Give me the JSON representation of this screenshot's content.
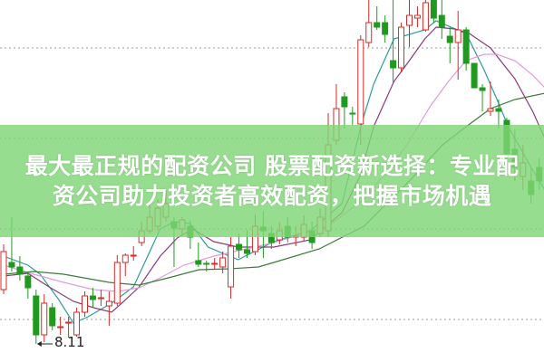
{
  "title": {
    "line1": "最大最正规的配资公司 股票配资新选择：专业配",
    "line2": "资公司助力投资者高效配资，把握市场机遇"
  },
  "chart_data": {
    "type": "candlestick",
    "title": "",
    "xlabel": "",
    "ylabel": "",
    "grid": true,
    "gridlines": [
      11.38,
      10.38,
      9.38,
      8.38
    ],
    "annotation": {
      "text": "8.11",
      "candle_index": 4,
      "price": 8.11
    },
    "up_color": "#d62a2a",
    "down_color": "#1f9a1f",
    "candles_ohlc": [
      [
        8.71,
        9.21,
        8.66,
        9.13
      ],
      [
        9.01,
        9.51,
        8.91,
        8.96
      ],
      [
        8.96,
        9.08,
        8.81,
        8.88
      ],
      [
        8.86,
        8.91,
        8.61,
        8.73
      ],
      [
        8.64,
        8.71,
        8.11,
        8.21
      ],
      [
        8.21,
        8.66,
        8.13,
        8.56
      ],
      [
        8.51,
        8.56,
        8.26,
        8.31
      ],
      [
        8.29,
        8.41,
        8.21,
        8.3
      ],
      [
        8.34,
        8.41,
        8.18,
        8.35
      ],
      [
        8.21,
        8.51,
        8.19,
        8.46
      ],
      [
        8.46,
        8.69,
        8.41,
        8.64
      ],
      [
        8.64,
        8.73,
        8.51,
        8.6
      ],
      [
        8.61,
        8.71,
        8.53,
        8.62
      ],
      [
        8.53,
        8.69,
        8.31,
        8.58
      ],
      [
        8.56,
        9.09,
        8.53,
        9.01
      ],
      [
        9.01,
        9.11,
        8.86,
        9.09
      ],
      [
        9.08,
        9.19,
        9.03,
        9.09
      ],
      [
        9.23,
        9.46,
        9.19,
        9.36
      ],
      [
        9.36,
        9.66,
        9.33,
        9.51
      ],
      [
        9.41,
        9.71,
        9.36,
        9.61
      ],
      [
        9.51,
        9.81,
        9.46,
        9.66
      ],
      [
        9.46,
        9.51,
        8.96,
        9.39
      ],
      [
        9.38,
        9.51,
        9.31,
        9.48
      ],
      [
        9.41,
        9.48,
        9.16,
        9.29
      ],
      [
        9.03,
        9.23,
        8.96,
        8.99
      ],
      [
        9.0,
        9.03,
        8.91,
        8.99
      ],
      [
        8.99,
        9.06,
        8.93,
        9.0
      ],
      [
        8.96,
        9.13,
        8.89,
        9.06
      ],
      [
        8.74,
        9.29,
        8.61,
        9.19
      ],
      [
        9.21,
        9.33,
        9.06,
        9.15
      ],
      [
        9.15,
        9.37,
        9.06,
        9.11
      ],
      [
        9.13,
        9.54,
        9.09,
        9.41
      ],
      [
        9.4,
        9.58,
        9.06,
        9.36
      ],
      [
        9.33,
        9.41,
        9.16,
        9.23
      ],
      [
        9.26,
        9.46,
        9.21,
        9.36
      ],
      [
        9.41,
        9.51,
        9.23,
        9.29
      ],
      [
        9.29,
        9.41,
        9.19,
        9.3
      ],
      [
        9.29,
        9.53,
        9.25,
        9.43
      ],
      [
        9.36,
        9.46,
        9.16,
        9.23
      ],
      [
        9.33,
        9.61,
        9.29,
        9.51
      ],
      [
        9.36,
        10.66,
        9.29,
        10.31
      ],
      [
        10.36,
        10.98,
        10.31,
        10.71
      ],
      [
        10.84,
        10.89,
        10.49,
        10.73
      ],
      [
        10.66,
        10.73,
        10.53,
        10.65
      ],
      [
        10.54,
        11.52,
        10.31,
        11.47
      ],
      [
        11.44,
        11.91,
        11.39,
        11.66
      ],
      [
        11.66,
        11.84,
        11.58,
        11.61
      ],
      [
        11.66,
        11.74,
        11.44,
        11.53
      ],
      [
        11.24,
        11.91,
        10.99,
        11.16
      ],
      [
        11.16,
        11.66,
        11.11,
        11.61
      ],
      [
        11.63,
        11.91,
        11.39,
        11.74
      ],
      [
        11.71,
        11.84,
        11.61,
        11.74
      ],
      [
        11.58,
        11.91,
        11.56,
        11.88
      ],
      [
        11.91,
        11.91,
        11.66,
        11.71
      ],
      [
        11.74,
        11.91,
        11.48,
        11.61
      ],
      [
        11.51,
        11.61,
        11.21,
        11.44
      ],
      [
        11.44,
        11.79,
        11.03,
        11.58
      ],
      [
        11.58,
        11.61,
        11.13,
        11.21
      ],
      [
        11.21,
        11.21,
        10.94,
        10.94
      ],
      [
        10.94,
        10.98,
        10.68,
        10.91
      ],
      [
        10.68,
        11.01,
        10.63,
        10.71
      ],
      [
        10.71,
        10.81,
        10.49,
        10.68
      ],
      [
        10.58,
        10.61,
        10.16,
        10.21
      ],
      [
        10.26,
        10.48,
        9.91,
        10.06
      ],
      [
        9.96,
        10.31,
        9.81,
        10.11
      ],
      [
        9.91,
        10.06,
        9.66,
        9.76
      ],
      [
        10.06,
        10.16,
        9.81,
        9.91
      ]
    ],
    "moving_averages": [
      {
        "color": "#2e9c9c",
        "points": [
          [
            0,
            9.08
          ],
          [
            3,
            8.98
          ],
          [
            4.5,
            8.88
          ],
          [
            6.7,
            8.61
          ],
          [
            8.6,
            8.34
          ],
          [
            10.4,
            8.41
          ],
          [
            13.3,
            8.56
          ],
          [
            16,
            8.74
          ],
          [
            19.3,
            9.38
          ],
          [
            21.1,
            9.46
          ],
          [
            23,
            9.44
          ],
          [
            25.2,
            9.18
          ],
          [
            28.9,
            9.04
          ],
          [
            33.3,
            9.24
          ],
          [
            37.8,
            9.36
          ],
          [
            41.7,
            9.66
          ],
          [
            44.1,
            10.54
          ],
          [
            45.6,
            10.98
          ],
          [
            48.1,
            11.48
          ],
          [
            51.9,
            11.58
          ],
          [
            53.3,
            11.68
          ],
          [
            57,
            11.54
          ],
          [
            59.2,
            11.14
          ],
          [
            60.8,
            10.81
          ],
          [
            62.2,
            10.51
          ],
          [
            65,
            10.06
          ],
          [
            66.7,
            9.81
          ]
        ]
      },
      {
        "color": "#8a3a7c",
        "points": [
          [
            0,
            8.86
          ],
          [
            3,
            8.89
          ],
          [
            5.6,
            8.74
          ],
          [
            8.6,
            8.58
          ],
          [
            11.1,
            8.51
          ],
          [
            13.3,
            8.46
          ],
          [
            14.8,
            8.58
          ],
          [
            16.7,
            8.74
          ],
          [
            19.3,
            9.08
          ],
          [
            21.4,
            9.28
          ],
          [
            23.3,
            9.38
          ],
          [
            25.9,
            9.24
          ],
          [
            28.9,
            9.18
          ],
          [
            33.3,
            9.18
          ],
          [
            37.8,
            9.26
          ],
          [
            41.7,
            9.56
          ],
          [
            43.9,
            9.96
          ],
          [
            45.6,
            10.51
          ],
          [
            48.1,
            11.01
          ],
          [
            50,
            11.24
          ],
          [
            51.9,
            11.48
          ],
          [
            53.3,
            11.61
          ],
          [
            55.6,
            11.59
          ],
          [
            57.4,
            11.54
          ],
          [
            60,
            11.38
          ],
          [
            63,
            11.04
          ],
          [
            65.2,
            10.68
          ],
          [
            66.7,
            10.38
          ]
        ]
      },
      {
        "color": "#e39be0",
        "points": [
          [
            0,
            8.98
          ],
          [
            3.7,
            8.88
          ],
          [
            7.4,
            8.79
          ],
          [
            11.1,
            8.71
          ],
          [
            14.1,
            8.69
          ],
          [
            16.7,
            8.73
          ],
          [
            19.3,
            8.84
          ],
          [
            22.2,
            8.98
          ],
          [
            25.9,
            9.08
          ],
          [
            31.4,
            9.19
          ],
          [
            33.3,
            9.23
          ],
          [
            40,
            9.41
          ],
          [
            44.4,
            9.71
          ],
          [
            47.2,
            10.01
          ],
          [
            49.7,
            10.31
          ],
          [
            52.6,
            10.74
          ],
          [
            54.8,
            11.01
          ],
          [
            57,
            11.24
          ],
          [
            59.2,
            11.31
          ],
          [
            60.8,
            11.31
          ],
          [
            63,
            11.24
          ],
          [
            65.2,
            11.08
          ],
          [
            66.7,
            10.94
          ]
        ]
      },
      {
        "color": "#3d7a3d",
        "points": [
          [
            0,
            8.88
          ],
          [
            3.7,
            8.91
          ],
          [
            7.4,
            8.88
          ],
          [
            13,
            8.79
          ],
          [
            16.7,
            8.76
          ],
          [
            20.3,
            8.84
          ],
          [
            24.1,
            8.93
          ],
          [
            27.8,
            8.94
          ],
          [
            31.4,
            8.96
          ],
          [
            33.3,
            9.01
          ],
          [
            38.9,
            9.16
          ],
          [
            44.4,
            9.41
          ],
          [
            50,
            9.91
          ],
          [
            54.1,
            10.31
          ],
          [
            57,
            10.51
          ],
          [
            60,
            10.71
          ],
          [
            63,
            10.81
          ],
          [
            66.7,
            10.88
          ]
        ]
      }
    ]
  }
}
